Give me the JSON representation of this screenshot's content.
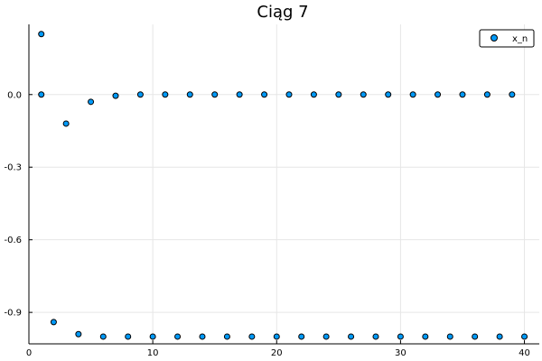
{
  "chart_data": {
    "type": "scatter",
    "title": "Ciąg 7",
    "xlabel": "",
    "ylabel": "",
    "xlim": [
      0,
      41.2
    ],
    "ylim": [
      -1.03,
      0.29
    ],
    "xticks": [
      0,
      10,
      20,
      30,
      40
    ],
    "yticks": [
      0.0,
      -0.3,
      -0.6,
      -0.9
    ],
    "ytick_labels": [
      "0.0",
      "-0.3",
      "-0.6",
      "-0.9"
    ],
    "grid": true,
    "legend_position": "top-right",
    "series": [
      {
        "name": "x_n",
        "color": "#009af9",
        "points": [
          [
            1,
            0.25
          ],
          [
            1,
            0.0
          ],
          [
            2,
            -0.94
          ],
          [
            3,
            -0.12
          ],
          [
            4,
            -0.99
          ],
          [
            5,
            -0.03
          ],
          [
            6,
            -1.0
          ],
          [
            7,
            -0.005
          ],
          [
            8,
            -1.0
          ],
          [
            9,
            0.0
          ],
          [
            10,
            -1.0
          ],
          [
            11,
            0.0
          ],
          [
            12,
            -1.0
          ],
          [
            13,
            0.0
          ],
          [
            14,
            -1.0
          ],
          [
            15,
            0.0
          ],
          [
            16,
            -1.0
          ],
          [
            17,
            0.0
          ],
          [
            18,
            -1.0
          ],
          [
            19,
            0.0
          ],
          [
            20,
            -1.0
          ],
          [
            21,
            0.0
          ],
          [
            22,
            -1.0
          ],
          [
            23,
            0.0
          ],
          [
            24,
            -1.0
          ],
          [
            25,
            0.0
          ],
          [
            26,
            -1.0
          ],
          [
            27,
            0.0
          ],
          [
            28,
            -1.0
          ],
          [
            29,
            0.0
          ],
          [
            30,
            -1.0
          ],
          [
            31,
            0.0
          ],
          [
            32,
            -1.0
          ],
          [
            33,
            0.0
          ],
          [
            34,
            -1.0
          ],
          [
            35,
            0.0
          ],
          [
            36,
            -1.0
          ],
          [
            37,
            0.0
          ],
          [
            38,
            -1.0
          ],
          [
            39,
            0.0
          ],
          [
            40,
            -1.0
          ]
        ]
      }
    ]
  }
}
